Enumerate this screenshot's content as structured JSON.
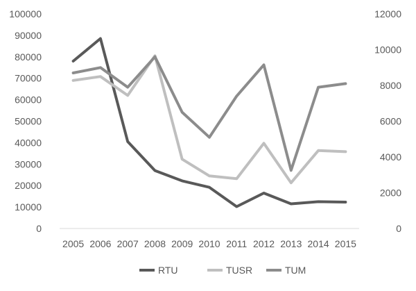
{
  "chart_data": {
    "type": "line",
    "title": "",
    "xlabel": "",
    "ylabel": "",
    "x": [
      "2005",
      "2006",
      "2007",
      "2008",
      "2009",
      "2010",
      "2011",
      "2012",
      "2013",
      "2014",
      "2015"
    ],
    "y_left": {
      "min": 0,
      "max": 100000,
      "ticks": [
        "0",
        "10000",
        "20000",
        "30000",
        "40000",
        "50000",
        "60000",
        "70000",
        "80000",
        "90000",
        "100000"
      ]
    },
    "y_right": {
      "min": 0,
      "max": 12000,
      "ticks": [
        "0",
        "2000",
        "4000",
        "6000",
        "8000",
        "10000",
        "12000"
      ]
    },
    "grid": false,
    "legend": "bottom",
    "series": [
      {
        "name": "RTU",
        "axis": "left",
        "color": "#595959",
        "values": [
          78000,
          88500,
          40500,
          27000,
          22200,
          19200,
          10200,
          16500,
          11500,
          12500,
          12300
        ]
      },
      {
        "name": "TUSR",
        "axis": "left",
        "color": "#bfbfbf",
        "values": [
          69000,
          70800,
          62000,
          80500,
          32300,
          24500,
          23200,
          39700,
          21300,
          36300,
          35800
        ]
      },
      {
        "name": "TUM",
        "axis": "right",
        "color": "#8c8c8c",
        "values": [
          8700,
          9000,
          7900,
          9600,
          6500,
          5100,
          7400,
          9150,
          3250,
          7900,
          8100
        ]
      }
    ]
  }
}
